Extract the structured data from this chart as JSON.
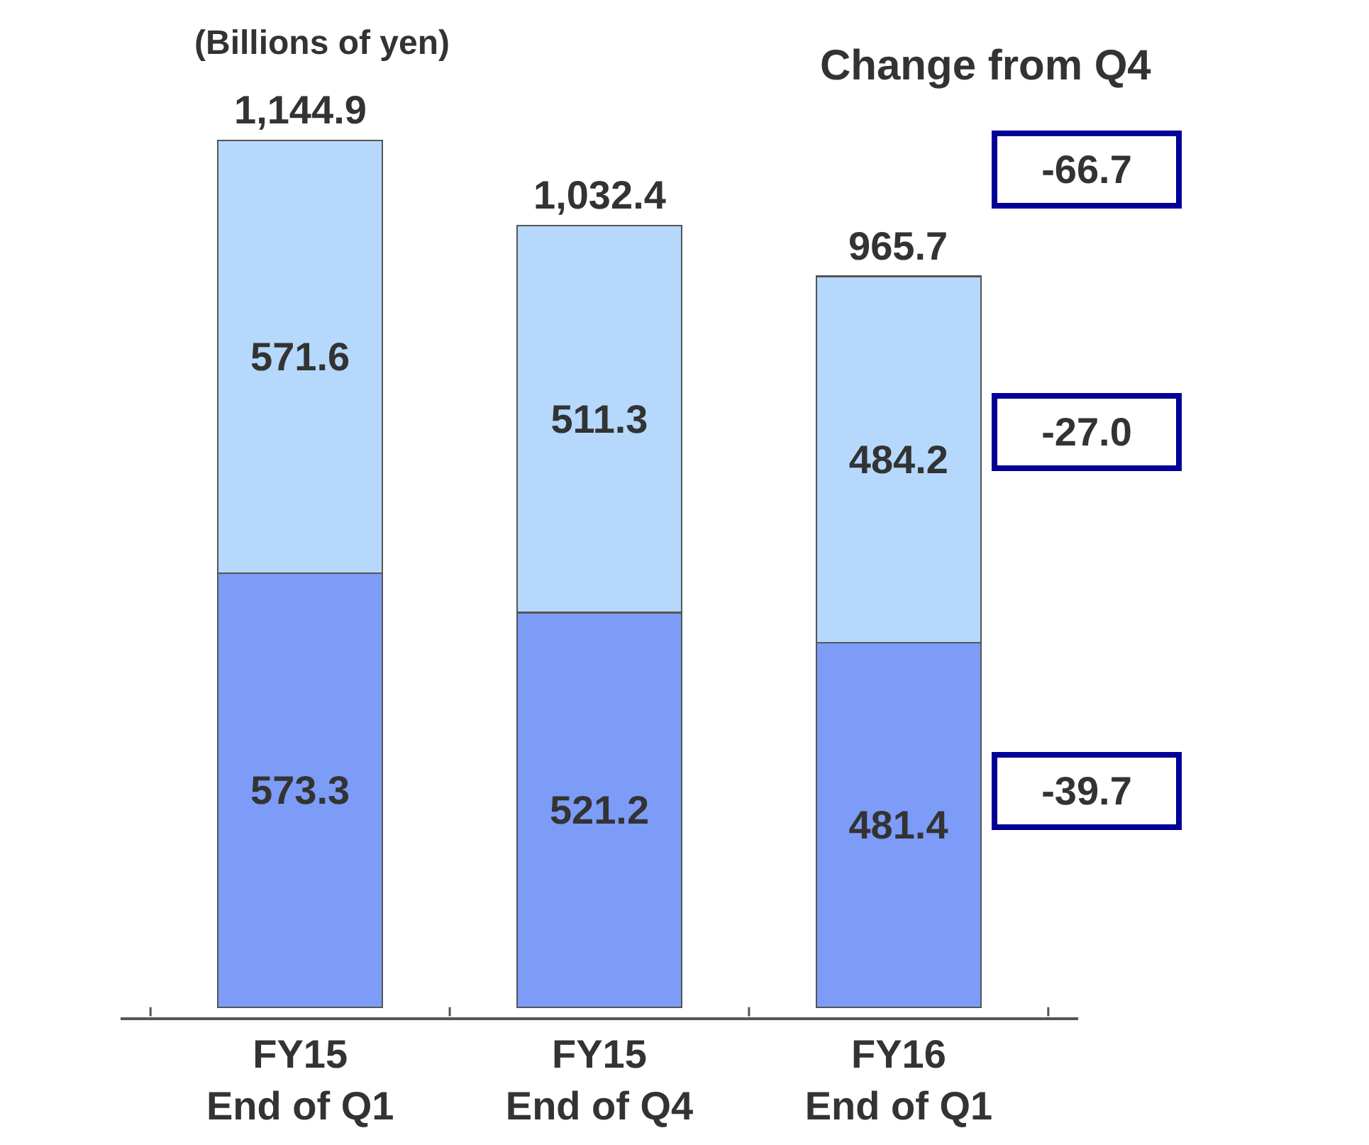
{
  "chart_data": {
    "type": "bar",
    "stacked": true,
    "ylabel": "(Billions of yen)",
    "categories": [
      "FY15\nEnd of Q1",
      "FY15\nEnd of Q4",
      "FY16\nEnd of Q1"
    ],
    "series": [
      {
        "color": "#7d9cf8",
        "values": [
          573.3,
          521.2,
          481.4
        ]
      },
      {
        "color": "#b5d8fc",
        "values": [
          571.6,
          511.3,
          484.2
        ]
      }
    ],
    "data_labels": true,
    "totals": [
      "1,144.9",
      "1,032.4",
      "965.7"
    ],
    "tick_labels": "x",
    "legend": false,
    "annotations": [
      "Change from Q4",
      "-66.7",
      "-27.0",
      "-39.7"
    ]
  }
}
